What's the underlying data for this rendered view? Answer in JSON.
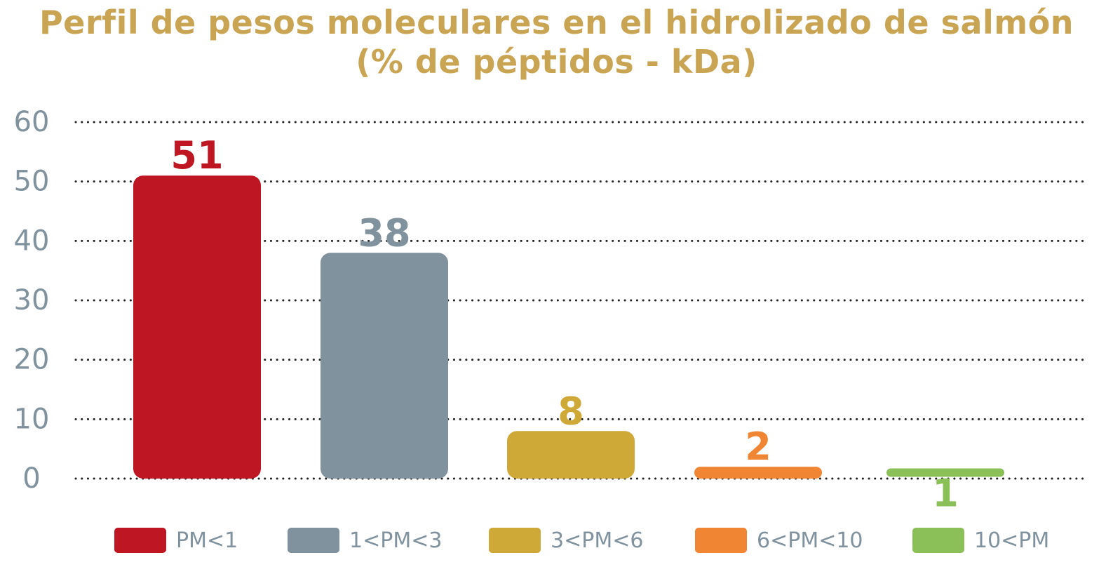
{
  "chart_data": {
    "type": "bar",
    "title": "Perfil de pesos moleculares en el hidrolizado de salmón",
    "subtitle": "(% de péptidos - kDa)",
    "categories": [
      "PM<1",
      "1<PM<3",
      "3<PM<6",
      "6<PM<10",
      "10<PM"
    ],
    "values": [
      51,
      38,
      8,
      2,
      1
    ],
    "value_labels": [
      "51",
      "38",
      "8",
      "2",
      "1"
    ],
    "colors": [
      "#be1622",
      "#7f929d",
      "#cfa937",
      "#f08533",
      "#8bbf58"
    ],
    "ylim": [
      0,
      60
    ],
    "yticks": [
      0,
      10,
      20,
      30,
      40,
      50,
      60
    ],
    "xlabel": "",
    "ylabel": "",
    "grid": "dotted horizontal",
    "legend": "bottom"
  },
  "colors": {
    "title": "#c9a553",
    "axis_text": "#7f929d",
    "grid": "#222222"
  }
}
